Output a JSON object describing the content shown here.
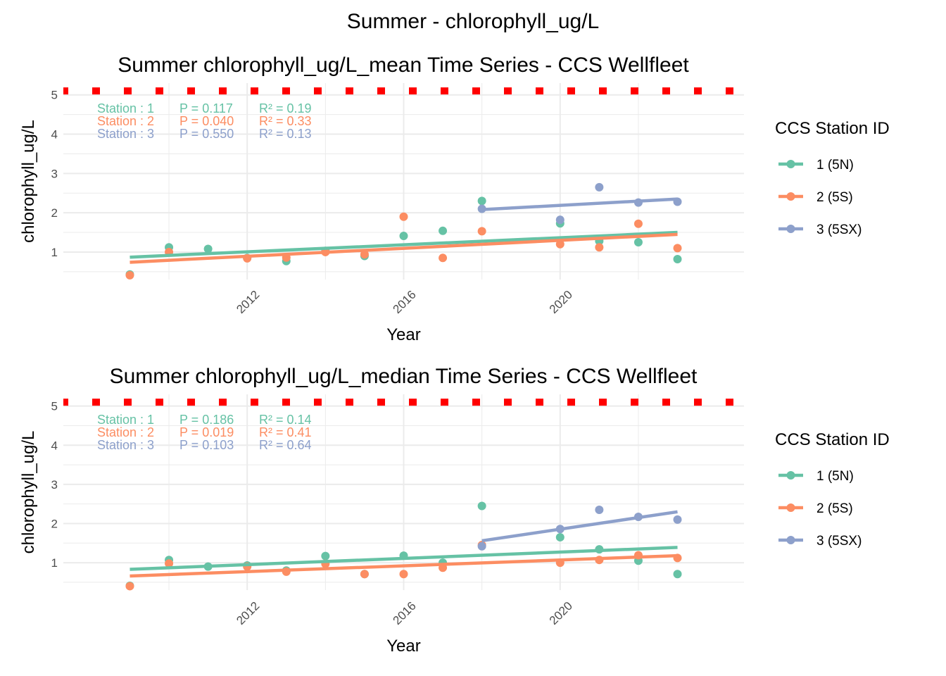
{
  "page_title": "Summer - chlorophyll_ug/L",
  "colors": {
    "station1": "#66C2A5",
    "station2": "#FC8D62",
    "station3": "#8DA0CB",
    "threshold": "#FF0000",
    "grid": "#EBEBEB"
  },
  "chart_data": [
    {
      "type": "scatter",
      "title": "Summer chlorophyll_ug/L_mean Time Series - CCS Wellfleet",
      "xlabel": "Year",
      "ylabel": "chlorophyll_ug/L",
      "xlim": [
        2007.3,
        2024.7
      ],
      "ylim": [
        0.3,
        5.3
      ],
      "x_ticks": [
        2012,
        2016,
        2020
      ],
      "x_tick_labels": [
        "2012",
        "2016",
        "2020"
      ],
      "y_ticks": [
        1,
        2,
        3,
        4,
        5
      ],
      "y_tick_labels": [
        "1",
        "2",
        "3",
        "4",
        "5"
      ],
      "grid": true,
      "threshold": 5.1,
      "legend": {
        "title": "CCS Station ID",
        "position": "right",
        "entries": [
          "1 (5N)",
          "2 (5S)",
          "3 (5SX)"
        ]
      },
      "stats": [
        {
          "station": "Station : 1",
          "p": "P = 0.117",
          "r2": "R² = 0.19"
        },
        {
          "station": "Station : 2",
          "p": "P = 0.040",
          "r2": "R² = 0.33"
        },
        {
          "station": "Station : 3",
          "p": "P = 0.550",
          "r2": "R² = 0.13"
        }
      ],
      "series": [
        {
          "name": "1 (5N)",
          "x": [
            2009,
            2010,
            2011,
            2012,
            2013,
            2014,
            2015,
            2016,
            2017,
            2018,
            2020,
            2021,
            2022,
            2023
          ],
          "y": [
            0.43,
            1.12,
            1.08,
            0.85,
            0.77,
            1.03,
            0.9,
            1.41,
            1.54,
            2.3,
            1.73,
            1.28,
            1.25,
            0.82
          ],
          "trend": [
            [
              2009,
              0.87
            ],
            [
              2023,
              1.5
            ]
          ]
        },
        {
          "name": "2 (5S)",
          "x": [
            2009,
            2010,
            2012,
            2013,
            2014,
            2015,
            2016,
            2017,
            2018,
            2020,
            2021,
            2022,
            2023
          ],
          "y": [
            0.41,
            1.0,
            0.84,
            0.86,
            1.0,
            0.94,
            1.9,
            0.85,
            1.53,
            1.2,
            1.12,
            1.72,
            1.1
          ],
          "trend": [
            [
              2009,
              0.74
            ],
            [
              2023,
              1.45
            ]
          ]
        },
        {
          "name": "3 (5SX)",
          "x": [
            2018,
            2020,
            2021,
            2022,
            2023
          ],
          "y": [
            2.1,
            1.82,
            2.65,
            2.26,
            2.28
          ],
          "trend": [
            [
              2018,
              2.08
            ],
            [
              2023,
              2.35
            ]
          ]
        }
      ]
    },
    {
      "type": "scatter",
      "title": "Summer chlorophyll_ug/L_median Time Series - CCS Wellfleet",
      "xlabel": "Year",
      "ylabel": "chlorophyll_ug/L",
      "xlim": [
        2007.3,
        2024.7
      ],
      "ylim": [
        0.3,
        5.3
      ],
      "x_ticks": [
        2012,
        2016,
        2020
      ],
      "x_tick_labels": [
        "2012",
        "2016",
        "2020"
      ],
      "y_ticks": [
        1,
        2,
        3,
        4,
        5
      ],
      "y_tick_labels": [
        "1",
        "2",
        "3",
        "4",
        "5"
      ],
      "grid": true,
      "threshold": 5.1,
      "legend": {
        "title": "CCS Station ID",
        "position": "right",
        "entries": [
          "1 (5N)",
          "2 (5S)",
          "3 (5SX)"
        ]
      },
      "stats": [
        {
          "station": "Station : 1",
          "p": "P = 0.186",
          "r2": "R² = 0.14"
        },
        {
          "station": "Station : 2",
          "p": "P = 0.019",
          "r2": "R² = 0.41"
        },
        {
          "station": "Station : 3",
          "p": "P = 0.103",
          "r2": "R² = 0.64"
        }
      ],
      "series": [
        {
          "name": "1 (5N)",
          "x": [
            2009,
            2010,
            2011,
            2012,
            2013,
            2014,
            2015,
            2016,
            2017,
            2018,
            2020,
            2021,
            2022,
            2023
          ],
          "y": [
            0.41,
            1.07,
            0.9,
            0.93,
            0.8,
            1.17,
            0.71,
            1.18,
            1.0,
            2.45,
            1.65,
            1.34,
            1.05,
            0.71
          ],
          "trend": [
            [
              2009,
              0.83
            ],
            [
              2023,
              1.39
            ]
          ]
        },
        {
          "name": "2 (5S)",
          "x": [
            2009,
            2010,
            2012,
            2013,
            2014,
            2015,
            2016,
            2017,
            2018,
            2020,
            2021,
            2022,
            2023
          ],
          "y": [
            0.4,
            0.98,
            0.9,
            0.77,
            0.97,
            0.71,
            0.71,
            0.87,
            1.45,
            1.0,
            1.07,
            1.19,
            1.12
          ],
          "trend": [
            [
              2009,
              0.66
            ],
            [
              2023,
              1.18
            ]
          ]
        },
        {
          "name": "3 (5SX)",
          "x": [
            2018,
            2020,
            2021,
            2022,
            2023
          ],
          "y": [
            1.42,
            1.86,
            2.35,
            2.17,
            2.1
          ],
          "trend": [
            [
              2018,
              1.56
            ],
            [
              2023,
              2.3
            ]
          ]
        }
      ]
    }
  ]
}
